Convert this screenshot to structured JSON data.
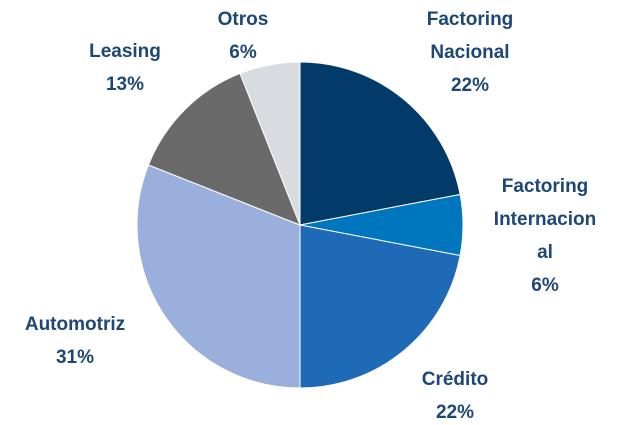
{
  "chart_data": {
    "type": "pie",
    "categories": [
      "Factoring Nacional",
      "Factoring Internacional",
      "Crédito",
      "Automotriz",
      "Leasing",
      "Otros"
    ],
    "values": [
      22,
      6,
      22,
      31,
      13,
      6
    ],
    "value_labels": [
      "22%",
      "6%",
      "22%",
      "31%",
      "13%",
      "6%"
    ],
    "colors": [
      "#023a69",
      "#0076bf",
      "#1f6ab6",
      "#9aafdb",
      "#6a6a6a",
      "#d8dce0"
    ]
  }
}
